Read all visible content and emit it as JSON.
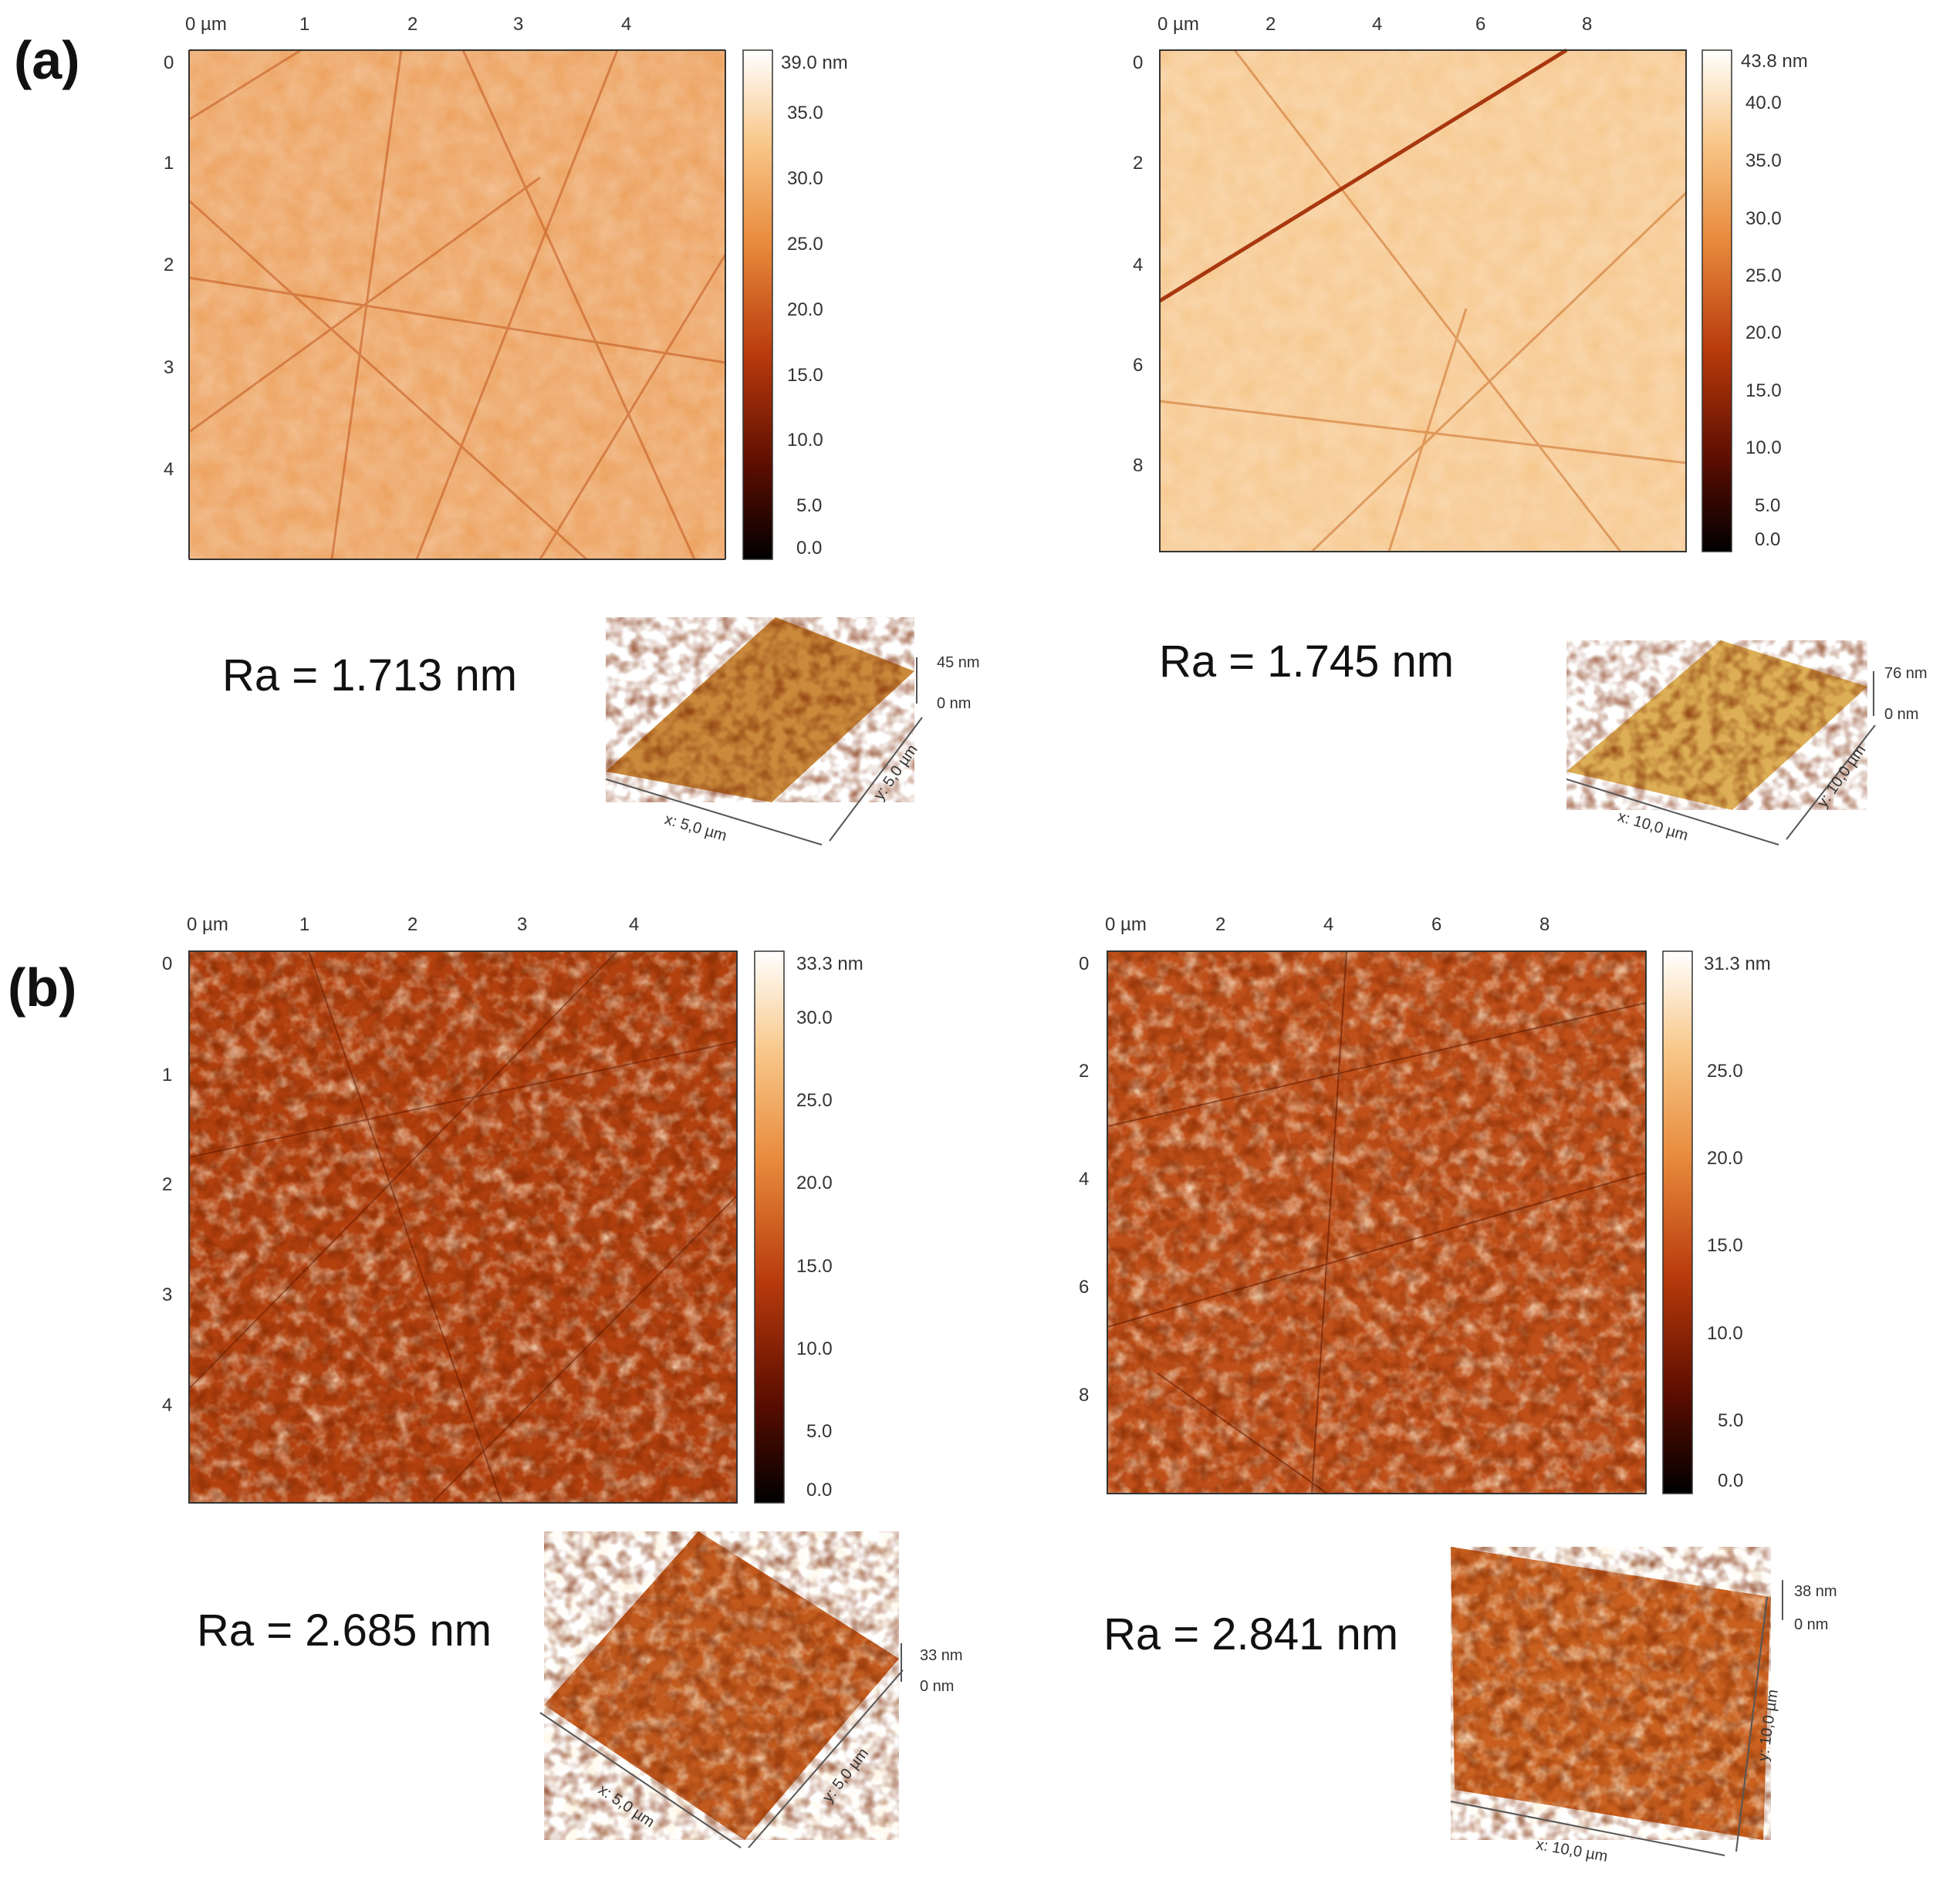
{
  "panels": [
    {
      "label": "(a)",
      "maps": [
        {
          "x_ticks": [
            "0 µm",
            "1",
            "2",
            "3",
            "4"
          ],
          "y_ticks": [
            "0",
            "1",
            "2",
            "3",
            "4"
          ],
          "colorbar": [
            "39.0 nm",
            "35.0",
            "30.0",
            "25.0",
            "20.0",
            "15.0",
            "10.0",
            "5.0",
            "0.0"
          ],
          "ra": "Ra = 1.713 nm",
          "iso": {
            "z_top": "45 nm",
            "z_bottom": "0 nm",
            "x_axis": "x: 5,0 µm",
            "y_axis": "y: 5,0 µm"
          }
        },
        {
          "x_ticks": [
            "0 µm",
            "2",
            "4",
            "6",
            "8"
          ],
          "y_ticks": [
            "0",
            "2",
            "4",
            "6",
            "8"
          ],
          "colorbar": [
            "43.8 nm",
            "40.0",
            "35.0",
            "30.0",
            "25.0",
            "20.0",
            "15.0",
            "10.0",
            "5.0",
            "0.0"
          ],
          "ra": "Ra = 1.745 nm",
          "iso": {
            "z_top": "76 nm",
            "z_bottom": "0 nm",
            "x_axis": "x: 10,0 µm",
            "y_axis": "y: 10,0 µm"
          }
        }
      ]
    },
    {
      "label": "(b)",
      "maps": [
        {
          "x_ticks": [
            "0 µm",
            "1",
            "2",
            "3",
            "4"
          ],
          "y_ticks": [
            "0",
            "1",
            "2",
            "3",
            "4"
          ],
          "colorbar": [
            "33.3 nm",
            "30.0",
            "25.0",
            "20.0",
            "15.0",
            "10.0",
            "5.0",
            "0.0"
          ],
          "ra": "Ra = 2.685 nm",
          "iso": {
            "z_top": "33 nm",
            "z_bottom": "0 nm",
            "x_axis": "x: 5,0 µm",
            "y_axis": "y: 5,0 µm"
          }
        },
        {
          "x_ticks": [
            "0 µm",
            "2",
            "4",
            "6",
            "8"
          ],
          "y_ticks": [
            "0",
            "2",
            "4",
            "6",
            "8"
          ],
          "colorbar": [
            "31.3 nm",
            "25.0",
            "20.0",
            "15.0",
            "10.0",
            "5.0",
            "0.0"
          ],
          "ra": "Ra = 2.841 nm",
          "iso": {
            "z_top": "38 nm",
            "z_bottom": "0 nm",
            "x_axis": "x: 10,0 µm",
            "y_axis": "y: 10,0 µm"
          }
        }
      ]
    }
  ]
}
